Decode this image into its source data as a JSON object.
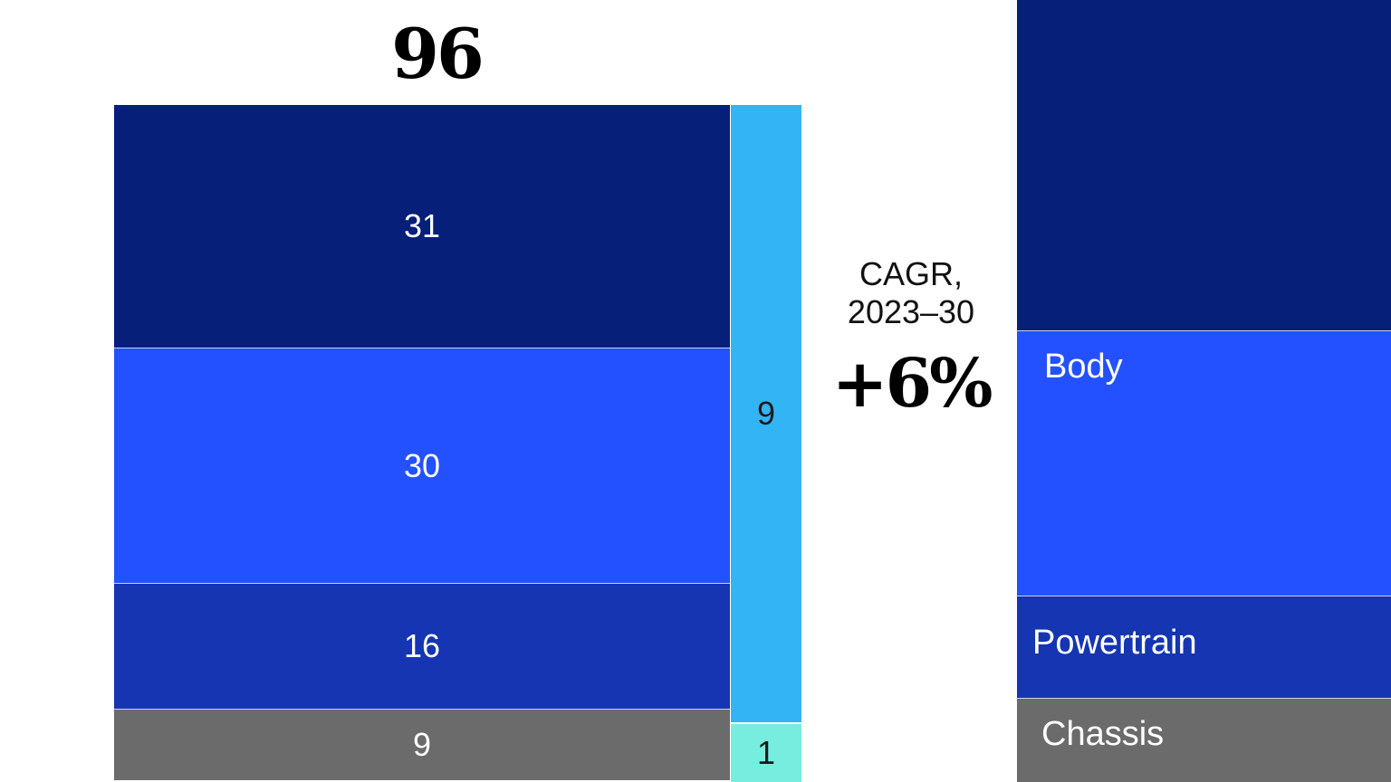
{
  "chart_data": {
    "type": "bar",
    "stacked": true,
    "total_label": "96",
    "main_column": [
      {
        "category": "Chassis",
        "value": 9,
        "label": "9",
        "color": "#6b6b6b"
      },
      {
        "category": "Powertrain",
        "value": 16,
        "label": "16",
        "color": "#1535b3"
      },
      {
        "category": "Body",
        "value": 30,
        "label": "30",
        "color": "#2451ff"
      },
      {
        "category": "",
        "value": 31,
        "label": "31",
        "color": "#061f79"
      }
    ],
    "side_column": [
      {
        "value": 1,
        "label": "1",
        "color": "#77ede0"
      },
      {
        "value": 9,
        "label": "9",
        "color": "#33b4f5"
      }
    ],
    "cagr": {
      "label_line1": "CAGR,",
      "label_line2": "2023–30",
      "value": "+6%"
    },
    "legend": [
      {
        "name": "Body",
        "color": "#2451ff"
      },
      {
        "name": "Powertrain",
        "color": "#1535b3"
      },
      {
        "name": "Chassis",
        "color": "#6b6b6b"
      }
    ],
    "legend_top_color": "#061f79"
  }
}
